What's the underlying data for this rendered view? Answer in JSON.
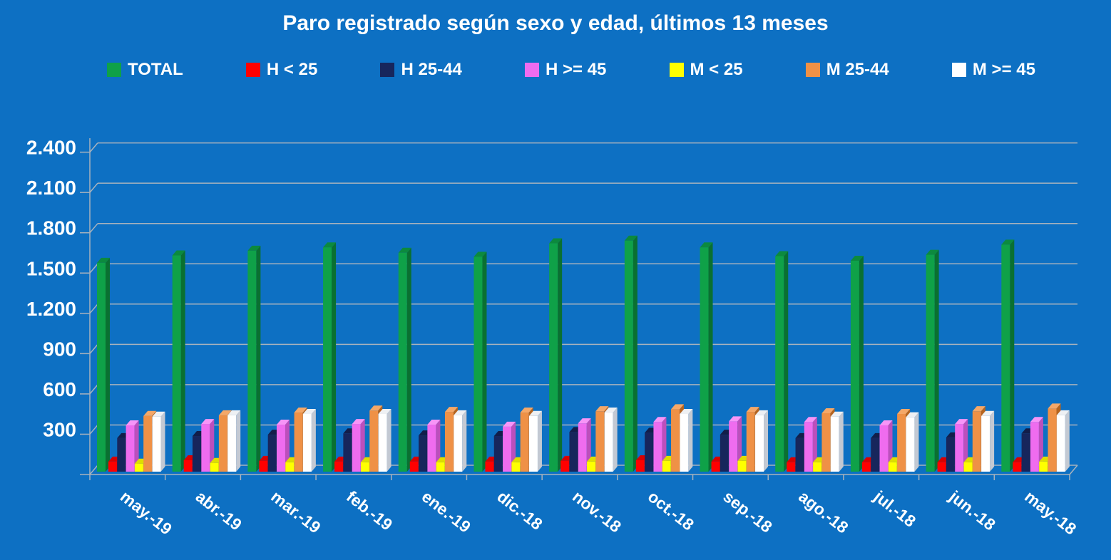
{
  "title": "Paro registrado según sexo y edad, últimos 13 meses",
  "colors": {
    "background": "#0D70C3",
    "text": "#FFFFFF",
    "gridline": "#A8B2BD",
    "axis": "#A8B2BD"
  },
  "chart_data": {
    "type": "bar",
    "title": "Paro registrado según sexo y edad, últimos 13 meses",
    "style": "3d-clustered-column",
    "categories": [
      "may.-19",
      "abr.-19",
      "mar.-19",
      "feb.-19",
      "ene.-19",
      "dic.-18",
      "nov.-18",
      "oct.-18",
      "sep.-18",
      "ago.-18",
      "jul.-18",
      "jun.-18",
      "may.-18"
    ],
    "series": [
      {
        "name": "TOTAL",
        "color": "#0FA148",
        "side": "#0A7031",
        "top": "#0C8A3E",
        "values": [
          1555,
          1610,
          1645,
          1670,
          1630,
          1600,
          1700,
          1720,
          1670,
          1605,
          1570,
          1615,
          1690
        ]
      },
      {
        "name": "H < 25",
        "color": "#FF0000",
        "side": "#B50000",
        "top": "#D90000",
        "values": [
          75,
          85,
          80,
          75,
          75,
          75,
          80,
          85,
          75,
          70,
          70,
          70,
          70
        ]
      },
      {
        "name": "H 25-44",
        "color": "#17265C",
        "side": "#0D1636",
        "top": "#121E4A",
        "values": [
          250,
          265,
          275,
          285,
          270,
          265,
          295,
          290,
          275,
          250,
          250,
          255,
          285
        ]
      },
      {
        "name": "H >= 45",
        "color": "#EF6CEF",
        "side": "#BC4FBC",
        "top": "#F795F7",
        "values": [
          345,
          355,
          350,
          355,
          350,
          335,
          360,
          370,
          375,
          370,
          345,
          355,
          370
        ]
      },
      {
        "name": "M < 25",
        "color": "#FFFF00",
        "side": "#BFBF00",
        "top": "#DEDE00",
        "values": [
          60,
          65,
          70,
          70,
          70,
          70,
          75,
          80,
          80,
          70,
          70,
          70,
          75
        ]
      },
      {
        "name": "M 25-44",
        "color": "#EF9146",
        "side": "#B5641F",
        "top": "#F5A868",
        "values": [
          415,
          420,
          440,
          455,
          445,
          440,
          450,
          465,
          445,
          435,
          430,
          450,
          470
        ]
      },
      {
        "name": "M >= 45",
        "color": "#FFFFFF",
        "side": "#C3C9D3",
        "top": "#EEF0F3",
        "values": [
          410,
          420,
          430,
          430,
          420,
          415,
          440,
          430,
          420,
          410,
          405,
          415,
          420
        ]
      }
    ],
    "y_ticks": [
      "300",
      "600",
      "900",
      "1.200",
      "1.500",
      "1.800",
      "2.100",
      "2.400"
    ],
    "y_step": 300,
    "ylim": [
      0,
      2400
    ],
    "grid": true,
    "legend_position": "top"
  }
}
